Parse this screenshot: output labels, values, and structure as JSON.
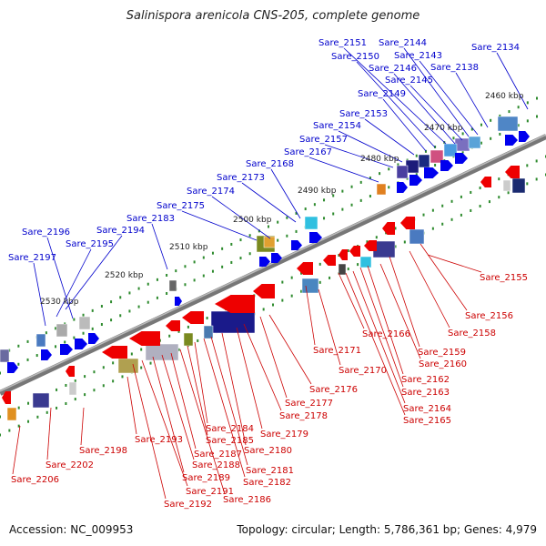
{
  "header": {
    "title": "Salinispora arenicola CNS-205, complete genome"
  },
  "footer": {
    "accession": "Accession: NC_009953",
    "summary": "Topology: circular; Length: 5,786,361 bp; Genes: 4,979"
  },
  "colors": {
    "top_strand_label": "#0000cc",
    "bottom_strand_label": "#cc0000",
    "backbone": "#888888",
    "tick": "#2e8b2e"
  },
  "scale_labels": [
    "2460 kbp",
    "2470 kbp",
    "2480 kbp",
    "2490 kbp",
    "2500 kbp",
    "2510 kbp",
    "2520 kbp",
    "2530 kbp"
  ],
  "top_genes": [
    "Sare_2134",
    "Sare_2138",
    "Sare_2143",
    "Sare_2144",
    "Sare_2145",
    "Sare_2146",
    "Sare_2149",
    "Sare_2150",
    "Sare_2151",
    "Sare_2153",
    "Sare_2154",
    "Sare_2157",
    "Sare_2167",
    "Sare_2168",
    "Sare_2173",
    "Sare_2174",
    "Sare_2175",
    "Sare_2183",
    "Sare_2194",
    "Sare_2195",
    "Sare_2196",
    "Sare_2197"
  ],
  "bottom_genes": [
    "Sare_2155",
    "Sare_2156",
    "Sare_2158",
    "Sare_2159",
    "Sare_2160",
    "Sare_2162",
    "Sare_2163",
    "Sare_2164",
    "Sare_2165",
    "Sare_2166",
    "Sare_2170",
    "Sare_2171",
    "Sare_2176",
    "Sare_2177",
    "Sare_2178",
    "Sare_2179",
    "Sare_2180",
    "Sare_2181",
    "Sare_2182",
    "Sare_2184",
    "Sare_2185",
    "Sare_2186",
    "Sare_2187",
    "Sare_2188",
    "Sare_2189",
    "Sare_2191",
    "Sare_2192",
    "Sare_2193",
    "Sare_2198",
    "Sare_2202",
    "Sare_2206"
  ]
}
